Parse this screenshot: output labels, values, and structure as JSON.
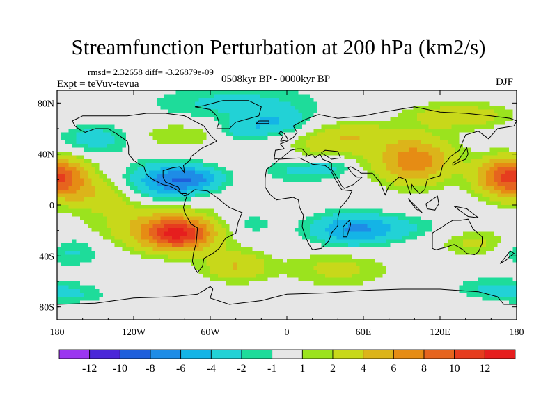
{
  "title": "Streamfunction Perturbation at 200 hPa (km2/s)",
  "rmsd_line": "rmsd= 2.32658 diff= -3.26879e-09",
  "experiment": "Expt = teVuv-tevua",
  "period": "0508kyr BP - 0000kyr BP",
  "season": "DJF",
  "map": {
    "projection": "cylindrical equidistant",
    "lon_range": [
      -180,
      180
    ],
    "lat_range": [
      -90,
      90
    ],
    "lat_ticks": [
      {
        "v": 80,
        "label": "80N"
      },
      {
        "v": 40,
        "label": "40N"
      },
      {
        "v": 0,
        "label": "0"
      },
      {
        "v": -40,
        "label": "40S"
      },
      {
        "v": -80,
        "label": "80S"
      }
    ],
    "lon_ticks": [
      {
        "v": -180,
        "label": "180"
      },
      {
        "v": -120,
        "label": "120W"
      },
      {
        "v": -60,
        "label": "60W"
      },
      {
        "v": 0,
        "label": "0"
      },
      {
        "v": 60,
        "label": "60E"
      },
      {
        "v": 120,
        "label": "120E"
      },
      {
        "v": 180,
        "label": "180"
      }
    ],
    "ocean_color": "#e6e6e6",
    "coastline_color": "#000000",
    "field_blobs": [
      {
        "lon": -175,
        "lat": 22,
        "rlon": 22,
        "rlat": 15,
        "amp": 7.5
      },
      {
        "lon": 165,
        "lat": 22,
        "rlon": 20,
        "rlat": 15,
        "amp": 6
      },
      {
        "lon": -150,
        "lat": 8,
        "rlon": 30,
        "rlat": 12,
        "amp": 3
      },
      {
        "lon": -170,
        "lat": -36,
        "rlon": 25,
        "rlat": 12,
        "amp": -2.5
      },
      {
        "lon": -95,
        "lat": 18,
        "rlon": 28,
        "rlat": 14,
        "amp": -6.5
      },
      {
        "lon": -70,
        "lat": 21,
        "rlon": 22,
        "rlat": 9,
        "amp": -4.5
      },
      {
        "lon": -85,
        "lat": 55,
        "rlon": 35,
        "rlat": 10,
        "amp": 2
      },
      {
        "lon": -150,
        "lat": 52,
        "rlon": 28,
        "rlat": 12,
        "amp": -3
      },
      {
        "lon": -85,
        "lat": -23,
        "rlon": 28,
        "rlat": 13,
        "amp": 11
      },
      {
        "lon": -110,
        "lat": -15,
        "rlon": 45,
        "rlat": 18,
        "amp": 3
      },
      {
        "lon": -40,
        "lat": 80,
        "rlon": 65,
        "rlat": 14,
        "amp": -2.5
      },
      {
        "lon": -10,
        "lat": 65,
        "rlon": 25,
        "rlat": 10,
        "amp": -3.5
      },
      {
        "lon": -35,
        "lat": 58,
        "rlon": 18,
        "rlat": 8,
        "amp": -2.5
      },
      {
        "lon": 10,
        "lat": 28,
        "rlon": 28,
        "rlat": 10,
        "amp": -2.5
      },
      {
        "lon": 35,
        "lat": 30,
        "rlon": 18,
        "rlat": 8,
        "amp": -2
      },
      {
        "lon": 30,
        "lat": 45,
        "rlon": 30,
        "rlat": 14,
        "amp": 2.5
      },
      {
        "lon": 55,
        "lat": 55,
        "rlon": 30,
        "rlat": 10,
        "amp": 3
      },
      {
        "lon": 100,
        "lat": 35,
        "rlon": 30,
        "rlat": 18,
        "amp": 7.5
      },
      {
        "lon": 135,
        "lat": 70,
        "rlon": 40,
        "rlat": 10,
        "amp": 3.5
      },
      {
        "lon": -40,
        "lat": -48,
        "rlon": 25,
        "rlat": 12,
        "amp": 4
      },
      {
        "lon": -28,
        "lat": -15,
        "rlon": 20,
        "rlat": 10,
        "amp": -1.5
      },
      {
        "lon": 50,
        "lat": -20,
        "rlon": 30,
        "rlat": 14,
        "amp": -4
      },
      {
        "lon": 70,
        "lat": -18,
        "rlon": 45,
        "rlat": 10,
        "amp": -3
      },
      {
        "lon": 40,
        "lat": -50,
        "rlon": 40,
        "rlat": 14,
        "amp": 2.5
      },
      {
        "lon": 150,
        "lat": -30,
        "rlon": 30,
        "rlat": 10,
        "amp": 2.5
      },
      {
        "lon": -170,
        "lat": -70,
        "rlon": 30,
        "rlat": 8,
        "amp": -2
      },
      {
        "lon": 160,
        "lat": -65,
        "rlon": 30,
        "rlat": 8,
        "amp": -2
      }
    ]
  },
  "colorbar": {
    "labels": [
      "-12",
      "-10",
      "-8",
      "-6",
      "-4",
      "-2",
      "-1",
      "1",
      "2",
      "4",
      "6",
      "8",
      "10",
      "12"
    ],
    "colors": [
      "#9b36f0",
      "#4b27d8",
      "#1f5fdc",
      "#1e8ce6",
      "#14b4e6",
      "#22d2d6",
      "#1edc9a",
      "#e6e6e6",
      "#9be31e",
      "#c8d81a",
      "#dcb41a",
      "#e68c14",
      "#e6641e",
      "#e63c1e",
      "#e61e1e"
    ]
  }
}
